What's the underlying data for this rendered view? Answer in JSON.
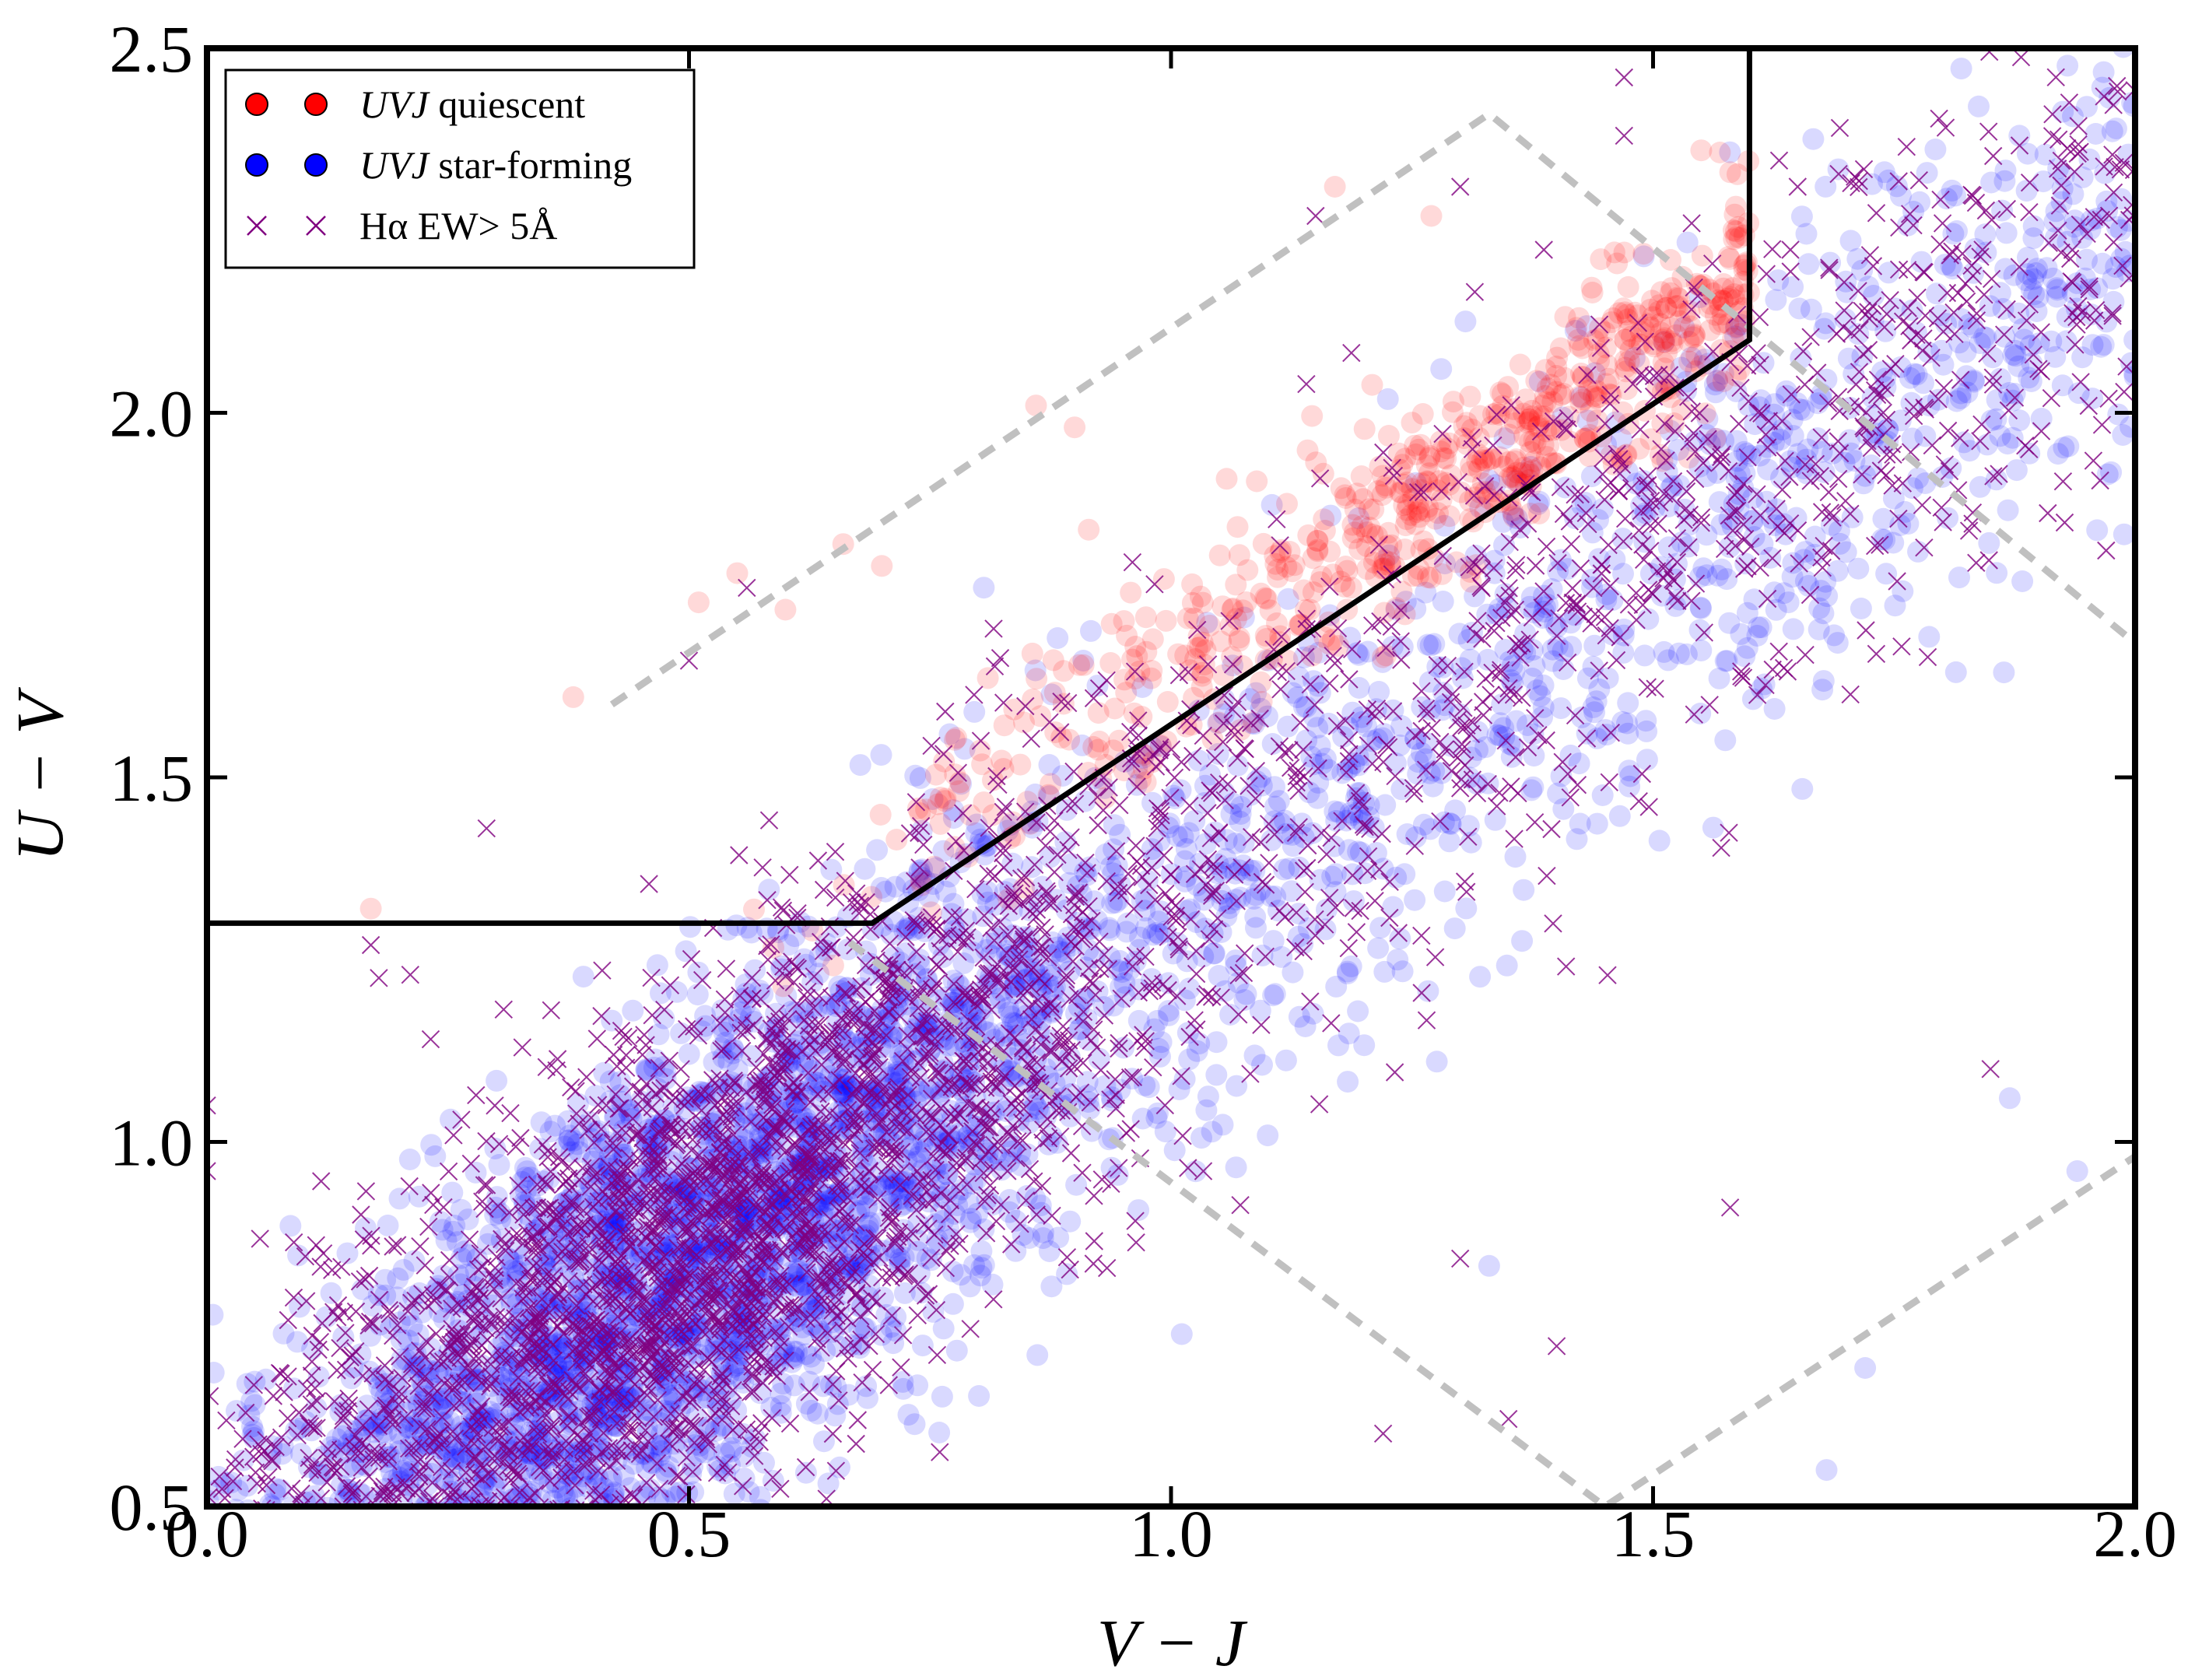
{
  "chart_data": {
    "type": "scatter",
    "title": "",
    "xlabel": "V − J",
    "ylabel": "U − V",
    "xlim": [
      0.0,
      2.0
    ],
    "ylim": [
      0.5,
      2.5
    ],
    "xticks": [
      "0.0",
      "0.5",
      "1.0",
      "1.5",
      "2.0"
    ],
    "yticks": [
      "0.5",
      "1.0",
      "1.5",
      "2.0",
      "2.5"
    ],
    "grid": false,
    "legend_position": "top-left",
    "legend": [
      {
        "italic": "UVJ",
        "text": " quiescent",
        "marker": "circle",
        "color": "#ff0000"
      },
      {
        "italic": "UVJ",
        "text": " star-forming",
        "marker": "circle",
        "color": "#0000ff"
      },
      {
        "italic": "",
        "text": "Hα EW> 5Å",
        "marker": "x",
        "color": "#800080"
      }
    ],
    "selection_boundary": {
      "color": "#000000",
      "style": "solid",
      "points": [
        [
          0.0,
          1.3
        ],
        [
          0.69,
          1.3
        ],
        [
          1.6,
          2.1
        ],
        [
          1.6,
          2.5
        ]
      ]
    },
    "dashed_region": {
      "color": "#c0c0c0",
      "style": "dashed",
      "points": [
        [
          0.42,
          1.6
        ],
        [
          1.33,
          2.41
        ],
        [
          2.05,
          1.63
        ],
        [
          2.0,
          0.98
        ],
        [
          1.45,
          0.5
        ],
        [
          0.66,
          1.28
        ]
      ]
    },
    "series": [
      {
        "name": "UVJ quiescent",
        "marker": "circle",
        "color": "#ff0000",
        "alpha": 0.15,
        "cloud": {
          "count": 650,
          "x_range": [
            0.55,
            1.6
          ],
          "center_line": {
            "slope": 0.88,
            "intercept": 0.77
          },
          "scatter_sigma": 0.07
        },
        "sample_points": [
          [
            0.38,
            1.61
          ],
          [
            0.17,
            1.32
          ],
          [
            0.51,
            1.74
          ],
          [
            0.55,
            1.78
          ],
          [
            0.6,
            1.73
          ],
          [
            0.66,
            1.82
          ],
          [
            0.7,
            1.79
          ],
          [
            0.86,
            2.01
          ],
          [
            0.9,
            1.98
          ],
          [
            1.17,
            2.31
          ],
          [
            1.27,
            2.27
          ],
          [
            1.46,
            2.22
          ],
          [
            1.55,
            2.36
          ],
          [
            1.58,
            2.33
          ]
        ]
      },
      {
        "name": "UVJ star-forming",
        "marker": "circle",
        "color": "#0000ff",
        "alpha": 0.15,
        "cloud": {
          "count": 4200,
          "x_range": [
            0.0,
            2.0
          ],
          "center_line": {
            "slope": 0.95,
            "intercept": 0.36
          },
          "scatter_sigma": 0.17,
          "density_peak_x": 0.5
        },
        "sample_points": [
          [
            1.88,
            2.38
          ],
          [
            1.74,
            2.33
          ],
          [
            1.95,
            2.21
          ],
          [
            1.7,
            2.18
          ],
          [
            1.98,
            2.2
          ],
          [
            1.87,
            1.06
          ],
          [
            1.68,
            0.55
          ],
          [
            1.72,
            0.69
          ],
          [
            1.94,
            0.96
          ],
          [
            1.33,
            0.83
          ]
        ]
      },
      {
        "name": "Hα EW> 5Å",
        "marker": "x",
        "color": "#800080",
        "alpha": 0.8,
        "cloud": {
          "count": 3400,
          "x_range": [
            0.0,
            2.0
          ],
          "center_line": {
            "slope": 0.95,
            "intercept": 0.38
          },
          "scatter_sigma": 0.18,
          "density_peak_x": 0.5
        },
        "sample_points": [
          [
            1.47,
            2.46
          ],
          [
            1.47,
            2.38
          ],
          [
            1.3,
            2.31
          ],
          [
            1.15,
            2.27
          ],
          [
            1.54,
            2.26
          ],
          [
            0.29,
            1.43
          ],
          [
            0.17,
            1.27
          ],
          [
            0.56,
            1.76
          ],
          [
            0.5,
            1.66
          ],
          [
            0.0,
            1.05
          ],
          [
            0.0,
            0.96
          ],
          [
            1.92,
            2.25
          ],
          [
            1.88,
            2.2
          ],
          [
            1.85,
            1.1
          ],
          [
            1.4,
            0.72
          ],
          [
            1.35,
            0.62
          ],
          [
            1.3,
            0.84
          ],
          [
            1.58,
            0.91
          ],
          [
            1.22,
            0.6
          ],
          [
            1.65,
            2.31
          ]
        ]
      }
    ]
  }
}
